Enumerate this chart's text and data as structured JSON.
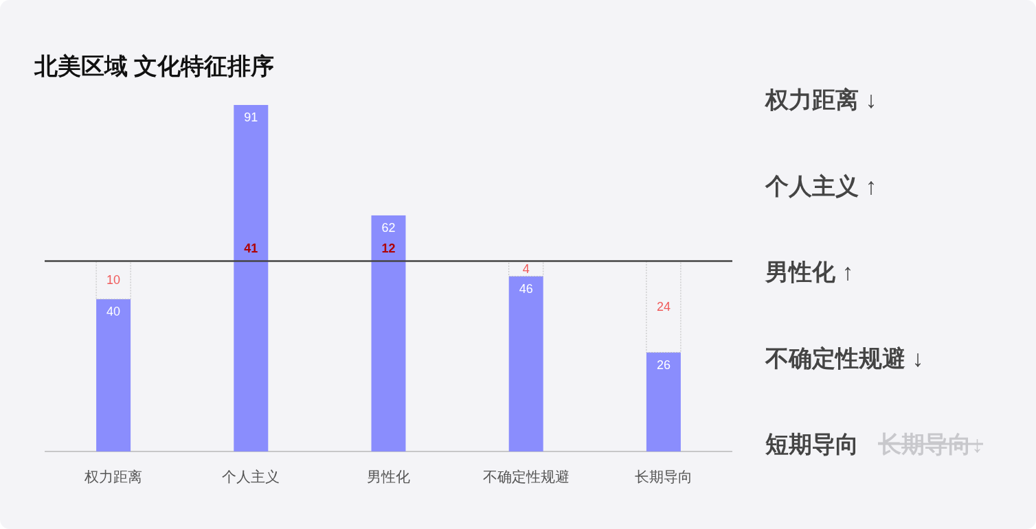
{
  "chart_data": {
    "type": "bar",
    "title": "北美区域 文化特征排序",
    "categories": [
      "权力距离",
      "个人主义",
      "男性化",
      "不确定性规避",
      "长期导向"
    ],
    "ylim": [
      0,
      91
    ],
    "stacked": true,
    "data_labels": true,
    "series": [
      {
        "color": "#8a8dfd",
        "values": [
          40,
          91,
          62,
          46,
          26
        ]
      },
      {
        "color": "#bbbbbb",
        "values": [
          10,
          null,
          null,
          4,
          24
        ]
      }
    ],
    "ref_lines": [
      {
        "axis": "y",
        "value": 50,
        "color": "#444444"
      }
    ],
    "annotations": [
      {
        "text": "41",
        "x": "个人主义",
        "y": 50
      },
      {
        "text": "12",
        "x": "男性化",
        "y": 50
      },
      "权力距离 ↓",
      "个人主义 ↑",
      "男性化 ↑",
      "不确定性规避 ↓",
      "短期导向",
      "长期导向↓"
    ]
  }
}
